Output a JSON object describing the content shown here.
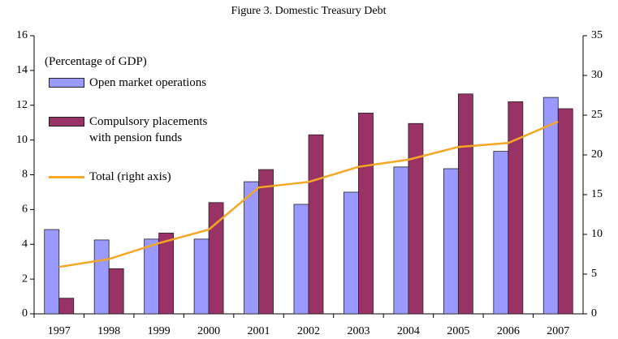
{
  "chart_data": {
    "type": "bar",
    "title": "Figure 3. Domestic Treasury Debt",
    "annotation": "(Percentage of GDP)",
    "categories": [
      "1997",
      "1998",
      "1999",
      "2000",
      "2001",
      "2002",
      "2003",
      "2004",
      "2005",
      "2006",
      "2007"
    ],
    "series": [
      {
        "name": "Open market operations",
        "color": "#9999ff",
        "type": "bar",
        "values": [
          4.85,
          4.25,
          4.3,
          4.3,
          7.6,
          6.3,
          7.0,
          8.45,
          8.35,
          9.35,
          12.45
        ]
      },
      {
        "name": "Compulsory placements with pension funds",
        "color": "#993366",
        "type": "bar",
        "values": [
          0.9,
          2.6,
          4.65,
          6.4,
          8.3,
          10.3,
          11.55,
          10.95,
          12.65,
          12.2,
          11.8
        ]
      },
      {
        "name": "Total (right axis)",
        "color": "#f5a623",
        "type": "line",
        "axis": "y2",
        "values": [
          5.9,
          6.9,
          8.9,
          10.6,
          15.9,
          16.6,
          18.5,
          19.4,
          21.0,
          21.5,
          24.2
        ]
      }
    ],
    "ylim": [
      0,
      16
    ],
    "yticks": [
      0,
      2,
      4,
      6,
      8,
      10,
      12,
      14,
      16
    ],
    "y2lim": [
      0,
      35
    ],
    "y2ticks": [
      0,
      5,
      10,
      15,
      20,
      25,
      30,
      35
    ],
    "grid": false
  }
}
